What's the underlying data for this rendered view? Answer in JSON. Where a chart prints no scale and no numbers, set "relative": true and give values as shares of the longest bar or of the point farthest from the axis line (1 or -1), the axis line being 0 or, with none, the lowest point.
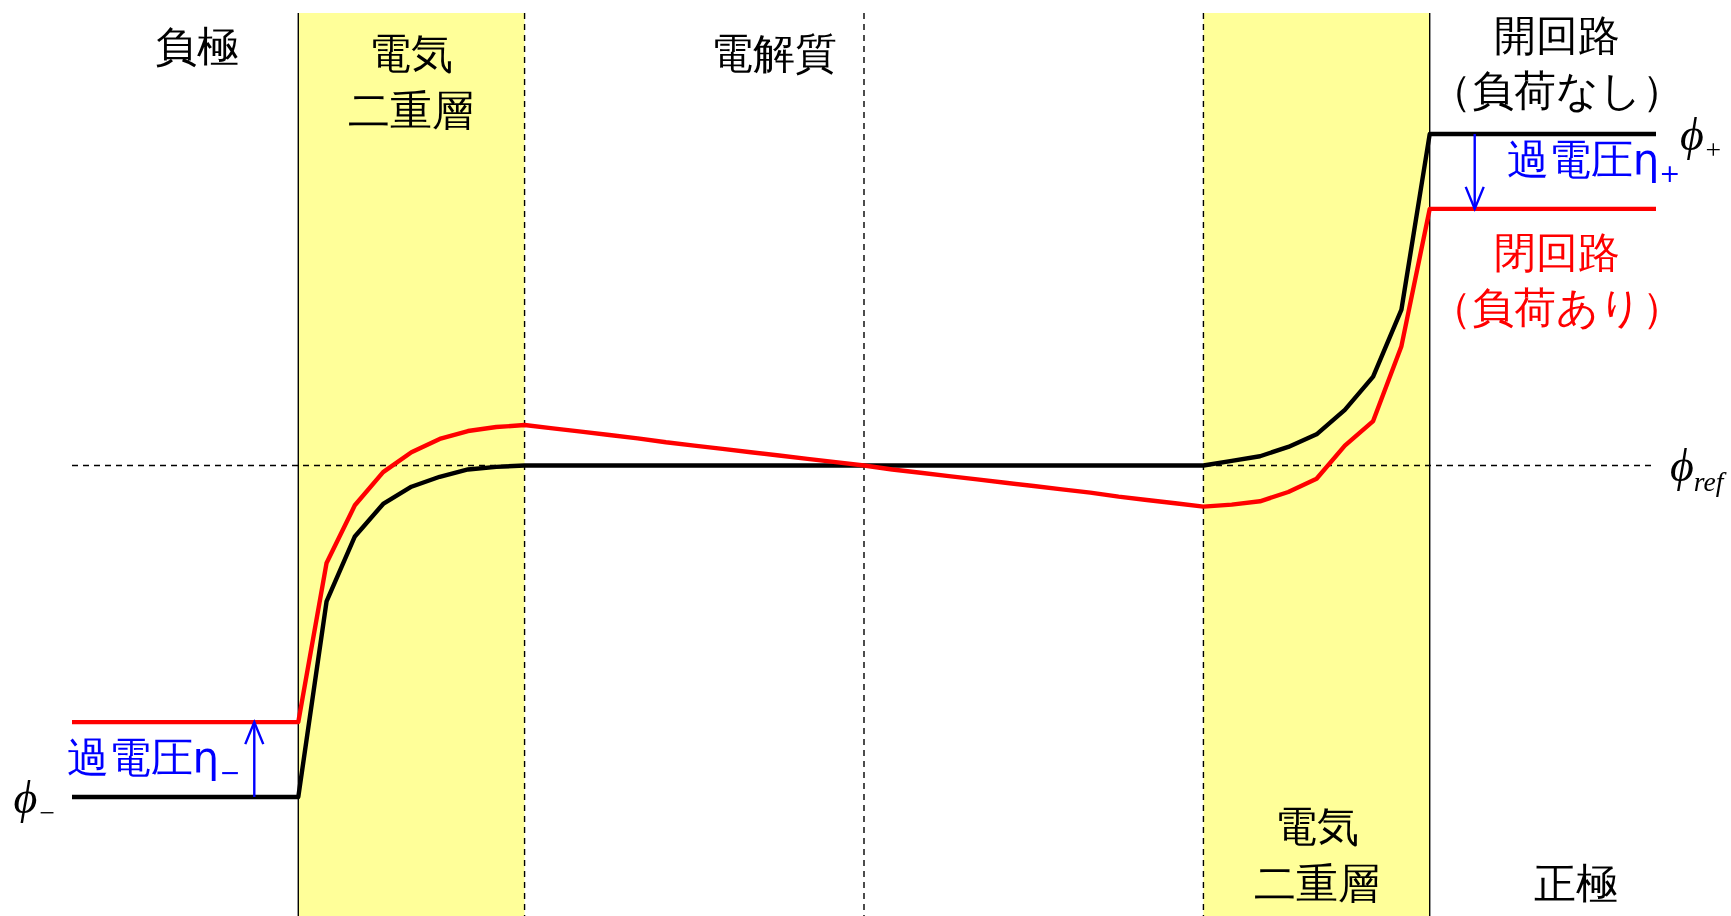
{
  "chart_data": {
    "type": "line",
    "relative": true,
    "line_style": "solid",
    "categories": [
      null,
      null,
      null,
      null,
      null,
      null,
      null,
      null,
      null,
      null,
      null,
      null,
      null,
      null,
      null,
      null,
      null,
      null,
      null,
      null,
      null,
      null,
      null,
      null,
      null,
      null,
      null,
      null,
      null,
      null,
      null,
      null,
      null,
      null,
      null,
      null,
      null,
      null,
      null,
      null,
      null,
      null,
      null,
      null,
      null,
      null,
      null,
      null,
      null,
      null,
      null,
      null,
      null,
      null,
      null,
      null,
      null
    ],
    "series": [
      {
        "name": "開回路（負荷なし）",
        "color": "#000000",
        "values": [
          0,
          0,
          0,
          0,
          0,
          0,
          0,
          0,
          0,
          0.295,
          0.393,
          0.442,
          0.468,
          0.483,
          0.494,
          0.498,
          0.5,
          0.5,
          0.5,
          0.5,
          0.5,
          0.5,
          0.5,
          0.5,
          0.5,
          0.5,
          0.5,
          0.5,
          0.5,
          0.5,
          0.5,
          0.5,
          0.5,
          0.5,
          0.5,
          0.5,
          0.5,
          0.5,
          0.5,
          0.5,
          0.5,
          0.507,
          0.514,
          0.528,
          0.547,
          0.584,
          0.634,
          0.735,
          1,
          1,
          1,
          1,
          1,
          1,
          1,
          1,
          1
        ]
      },
      {
        "name": "閉回路（負荷あり）",
        "color": "#ff0000",
        "values": [
          0.113,
          0.113,
          0.113,
          0.113,
          0.113,
          0.113,
          0.113,
          0.113,
          0.113,
          0.353,
          0.44,
          0.49,
          0.52,
          0.54,
          0.552,
          0.558,
          0.561,
          0.556,
          0.551,
          0.546,
          0.541,
          0.535,
          0.53,
          0.525,
          0.52,
          0.515,
          0.51,
          0.505,
          0.5,
          0.494,
          0.489,
          0.484,
          0.479,
          0.474,
          0.469,
          0.464,
          0.459,
          0.453,
          0.448,
          0.443,
          0.438,
          0.441,
          0.446,
          0.46,
          0.48,
          0.53,
          0.567,
          0.68,
          0.887,
          0.887,
          0.887,
          0.887,
          0.887,
          0.887,
          0.887,
          0.887,
          0.887
        ]
      }
    ],
    "grid": "x",
    "ref_lines": [
      {
        "axis": "y",
        "value": 0.5,
        "label": "ϕ$_{ref}$",
        "line_style": "dashed",
        "color": "#000000"
      }
    ],
    "annotations": [
      "負極",
      "電解質",
      "正極",
      "電気二重層",
      "電気二重層",
      "ϕ$_{+}$",
      "ϕ$_{−}$",
      "過電圧η$_{+}$",
      "過電圧η$_{−}$"
    ]
  }
}
